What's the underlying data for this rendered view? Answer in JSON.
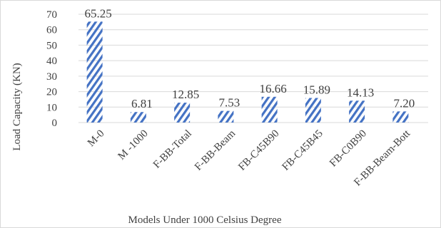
{
  "chart_data": {
    "type": "bar",
    "categories": [
      "M-0",
      "M -1000",
      "F-BB-Total",
      "F-BB-Beam",
      "FB-C45B90",
      "FB-C45B45",
      "FB-C0B90",
      "F-BB-Beam-Bott"
    ],
    "values": [
      65.25,
      6.81,
      12.85,
      7.53,
      16.66,
      15.89,
      14.13,
      7.2
    ],
    "data_labels": [
      "65.25",
      "6.81",
      "12.85",
      "7.53",
      "16.66",
      "15.89",
      "14.13",
      "7.20"
    ],
    "xlabel": "Models Under 1000 Celsius Degree",
    "ylabel": "Load Capacity (KN)",
    "ylim": [
      0,
      70
    ],
    "yticks": [
      0,
      10,
      20,
      30,
      40,
      50,
      60,
      70
    ],
    "ytick_labels": [
      "0",
      "10",
      "20",
      "30",
      "40",
      "50",
      "60",
      "70"
    ],
    "grid": true,
    "legend": "none",
    "bar_pattern": "diagonal-stripes",
    "colors": {
      "bar": "#4472c4",
      "grid": "#d9d9d9",
      "text": "#404040"
    }
  }
}
